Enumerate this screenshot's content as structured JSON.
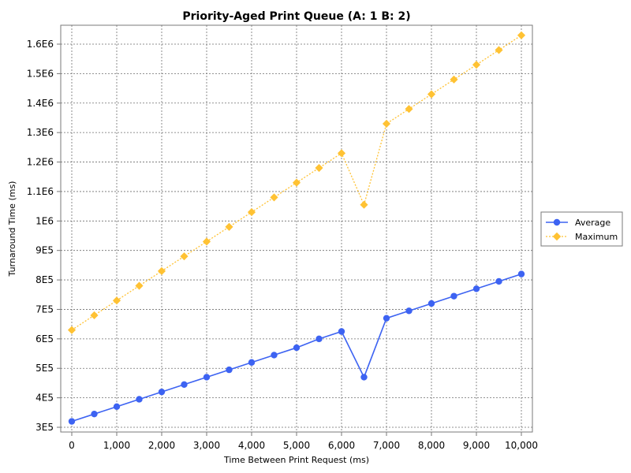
{
  "chart_data": {
    "type": "line",
    "title": "Priority-Aged Print Queue (A: 1 B: 2)",
    "xlabel": "Time Between Print Request (ms)",
    "ylabel": "Turnaround Time (ms)",
    "xlim": [
      0,
      10000
    ],
    "ylim": [
      300000,
      1650000
    ],
    "x_ticks": [
      0,
      1000,
      2000,
      3000,
      4000,
      5000,
      6000,
      7000,
      8000,
      9000,
      10000
    ],
    "x_tick_labels": [
      "0",
      "1,000",
      "2,000",
      "3,000",
      "4,000",
      "5,000",
      "6,000",
      "7,000",
      "8,000",
      "9,000",
      "10,000"
    ],
    "y_ticks": [
      300000,
      400000,
      500000,
      600000,
      700000,
      800000,
      900000,
      1000000,
      1100000,
      1200000,
      1300000,
      1400000,
      1500000,
      1600000
    ],
    "y_tick_labels": [
      "3E5",
      "4E5",
      "5E5",
      "6E5",
      "7E5",
      "8E5",
      "9E5",
      "1E6",
      "1.1E6",
      "1.2E6",
      "1.3E6",
      "1.4E6",
      "1.5E6",
      "1.6E6"
    ],
    "grid": true,
    "legend_position": "right",
    "x": [
      0,
      500,
      1000,
      1500,
      2000,
      2500,
      3000,
      3500,
      4000,
      4500,
      5000,
      5500,
      6000,
      6500,
      7000,
      7500,
      8000,
      8500,
      9000,
      9500,
      10000
    ],
    "series": [
      {
        "name": "Average",
        "color": "#3d63f2",
        "marker": "circle",
        "line_style": "solid",
        "values": [
          320000,
          345000,
          370000,
          395000,
          420000,
          445000,
          470000,
          495000,
          520000,
          545000,
          570000,
          600000,
          625000,
          470000,
          670000,
          695000,
          720000,
          745000,
          770000,
          795000,
          820000
        ]
      },
      {
        "name": "Maximum",
        "color": "#ffc233",
        "marker": "diamond",
        "line_style": "dotted",
        "values": [
          630000,
          680000,
          730000,
          780000,
          830000,
          880000,
          930000,
          980000,
          1030000,
          1080000,
          1130000,
          1180000,
          1230000,
          1055000,
          1330000,
          1380000,
          1430000,
          1480000,
          1530000,
          1580000,
          1630000
        ]
      }
    ]
  }
}
